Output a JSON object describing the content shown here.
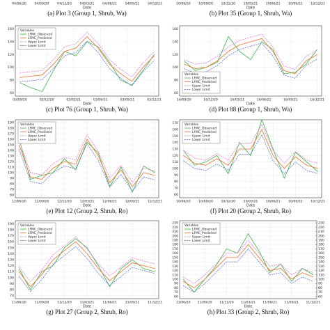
{
  "chart_data": [
    {
      "type": "line",
      "caption": "(a) Plot 3 (Group 1, Shrub, Wa)",
      "x_label": "Date",
      "xlim": [
        -0.5,
        18.5
      ],
      "xticks": [
        {
          "value": 0,
          "label": "04/06/20"
        },
        {
          "value": 3,
          "label": "04/09/20"
        },
        {
          "value": 6,
          "label": "04/12/20"
        },
        {
          "value": 9,
          "label": "04/03/21"
        },
        {
          "value": 12,
          "label": "04/06/21"
        },
        {
          "value": 15,
          "label": "04/09/21"
        },
        {
          "value": 18,
          "label": "04/12/21"
        }
      ]
    },
    {
      "type": "line",
      "caption": "(b) Plot 35 (Group 1, Shrub, Wa)",
      "x_label": "Date",
      "xlim": [
        -0.5,
        18.5
      ],
      "xticks": [
        {
          "value": 0,
          "label": "10/06/20"
        },
        {
          "value": 3,
          "label": "10/09/20"
        },
        {
          "value": 6,
          "label": "10/12/20"
        },
        {
          "value": 9,
          "label": "10/03/21"
        },
        {
          "value": 12,
          "label": "10/06/21"
        },
        {
          "value": 15,
          "label": "10/09/21"
        },
        {
          "value": 18,
          "label": "10/12/21"
        }
      ]
    },
    {
      "type": "line",
      "caption": "(c) Plot 76 (Group 1, Shrub, Wa)",
      "x_label": "Date",
      "xlim": [
        -0.5,
        15.5
      ],
      "ylim": [
        55,
        165
      ],
      "yticks": [
        60,
        80,
        100,
        120,
        140,
        160
      ],
      "grid": true,
      "legend_title": "Variables",
      "legend": "upper left",
      "xticks": [
        {
          "value": 0,
          "label": "03/09/20"
        },
        {
          "value": 3,
          "label": "03/12/20"
        },
        {
          "value": 6,
          "label": "03/03/21"
        },
        {
          "value": 9,
          "label": "03/06/21"
        },
        {
          "value": 12,
          "label": "03/09/21"
        },
        {
          "value": 15,
          "label": "03/12/21"
        }
      ],
      "x": [
        0,
        1.25,
        2.5,
        3.75,
        5,
        6.25,
        7.5,
        8.75,
        10,
        11.25,
        12.5,
        13.75,
        15
      ],
      "series": [
        {
          "name": "LFMC_Observed",
          "color": "#3cb043",
          "dash": false,
          "values": [
            76,
            68,
            62,
            95,
            125,
            118,
            140,
            132,
            108,
            80,
            72,
            95,
            120
          ]
        },
        {
          "name": "LFMC_Predicted",
          "color": "#e8712a",
          "dash": false,
          "values": [
            84,
            86,
            88,
            105,
            125,
            130,
            148,
            130,
            105,
            90,
            78,
            100,
            118
          ]
        },
        {
          "name": "Upper Limit",
          "color": "#e066d0",
          "dash": true,
          "values": [
            91,
            93,
            95,
            112,
            132,
            137,
            155,
            137,
            112,
            97,
            85,
            107,
            125
          ]
        },
        {
          "name": "Lower Limit",
          "color": "#4a5fd0",
          "dash": true,
          "values": [
            77,
            79,
            81,
            98,
            118,
            123,
            141,
            123,
            98,
            83,
            71,
            93,
            111
          ]
        }
      ]
    },
    {
      "type": "line",
      "caption": "(d) Plot 88 (Group 1, Shrub, Wa)",
      "x_label": "Date",
      "xlim": [
        -0.5,
        15.5
      ],
      "ylim": [
        55,
        165
      ],
      "yticks": [
        60,
        80,
        100,
        120,
        140,
        160
      ],
      "grid": true,
      "legend_title": "Variables",
      "legend": "lower left",
      "xticks": [
        {
          "value": 0,
          "label": "16/09/20"
        },
        {
          "value": 3,
          "label": "16/12/20"
        },
        {
          "value": 6,
          "label": "16/03/21"
        },
        {
          "value": 9,
          "label": "16/06/21"
        },
        {
          "value": 12,
          "label": "16/09/21"
        },
        {
          "value": 15,
          "label": "16/12/21"
        }
      ],
      "x": [
        0,
        1.25,
        2.5,
        3.75,
        5,
        6.25,
        7.5,
        8.75,
        10,
        11.25,
        12.5,
        13.75,
        15
      ],
      "series": [
        {
          "name": "LFMC_Observed",
          "color": "#3cb043",
          "dash": false,
          "values": [
            110,
            95,
            100,
            108,
            148,
            125,
            112,
            140,
            128,
            90,
            92,
            105,
            128
          ]
        },
        {
          "name": "LFMC_Predicted",
          "color": "#e8712a",
          "dash": false,
          "values": [
            105,
            98,
            100,
            110,
            125,
            135,
            140,
            145,
            125,
            95,
            90,
            110,
            120
          ]
        },
        {
          "name": "Upper Limit",
          "color": "#e066d0",
          "dash": true,
          "values": [
            112,
            105,
            107,
            117,
            132,
            142,
            147,
            152,
            132,
            102,
            97,
            117,
            127
          ]
        },
        {
          "name": "Lower Limit",
          "color": "#4a5fd0",
          "dash": true,
          "values": [
            98,
            91,
            93,
            103,
            118,
            128,
            133,
            138,
            118,
            88,
            83,
            103,
            113
          ]
        }
      ]
    },
    {
      "type": "line",
      "caption": "(e) Plot 12 (Group 2, Shrub, Ro)",
      "x_label": "Date",
      "xlim": [
        -0.5,
        18.5
      ],
      "ylim": [
        55,
        195
      ],
      "yticks": [
        60,
        70,
        80,
        90,
        100,
        110,
        120,
        130,
        140,
        150,
        160,
        170,
        180,
        190
      ],
      "grid": true,
      "legend_title": "Variables",
      "legend": "upper left",
      "xticks": [
        {
          "value": 0,
          "label": "12/06/20"
        },
        {
          "value": 3,
          "label": "12/09/20"
        },
        {
          "value": 6,
          "label": "12/12/20"
        },
        {
          "value": 9,
          "label": "12/03/21"
        },
        {
          "value": 12,
          "label": "12/06/21"
        },
        {
          "value": 15,
          "label": "12/09/21"
        },
        {
          "value": 18,
          "label": "12/12/21"
        }
      ],
      "x": [
        0,
        1.5,
        3,
        4.5,
        6,
        7.5,
        9,
        10.5,
        12,
        13.5,
        15,
        16.5,
        18
      ],
      "series": [
        {
          "name": "LFMC_Observed",
          "color": "#3cb043",
          "dash": false,
          "values": [
            160,
            88,
            95,
            100,
            125,
            105,
            155,
            135,
            75,
            110,
            65,
            112,
            100
          ]
        },
        {
          "name": "LFMC_Predicted",
          "color": "#e8712a",
          "dash": false,
          "values": [
            150,
            92,
            88,
            108,
            120,
            115,
            160,
            130,
            82,
            105,
            75,
            100,
            95
          ]
        },
        {
          "name": "Upper Limit",
          "color": "#e066d0",
          "dash": true,
          "values": [
            158,
            100,
            96,
            116,
            128,
            123,
            168,
            138,
            90,
            113,
            83,
            108,
            103
          ]
        },
        {
          "name": "Lower Limit",
          "color": "#4a5fd0",
          "dash": true,
          "values": [
            142,
            84,
            80,
            100,
            112,
            107,
            152,
            122,
            74,
            97,
            67,
            92,
            87
          ]
        }
      ]
    },
    {
      "type": "line",
      "caption": "(f) Plot 20 (Group 2, Shrub, Ro)",
      "x_label": "Date",
      "xlim": [
        -0.5,
        18.5
      ],
      "ylim": [
        55,
        175
      ],
      "yticks": [
        60,
        70,
        80,
        90,
        100,
        110,
        120,
        130,
        140,
        150,
        160,
        170
      ],
      "grid": true,
      "legend_title": "Variables",
      "legend": "upper left",
      "xticks": [
        {
          "value": 0,
          "label": "10/06/20"
        },
        {
          "value": 3,
          "label": "10/09/20"
        },
        {
          "value": 6,
          "label": "10/12/20"
        },
        {
          "value": 9,
          "label": "10/03/21"
        },
        {
          "value": 12,
          "label": "10/06/21"
        },
        {
          "value": 15,
          "label": "10/09/21"
        },
        {
          "value": 18,
          "label": "10/12/21"
        }
      ],
      "x": [
        0,
        1.5,
        3,
        4.5,
        6,
        7.5,
        9,
        10.5,
        12,
        13.5,
        15,
        16.5,
        18
      ],
      "series": [
        {
          "name": "LFMC_Observed",
          "color": "#3cb043",
          "dash": false,
          "values": [
            128,
            105,
            110,
            120,
            92,
            140,
            120,
            175,
            130,
            85,
            125,
            110,
            95
          ]
        },
        {
          "name": "LFMC_Predicted",
          "color": "#e8712a",
          "dash": false,
          "values": [
            120,
            108,
            105,
            115,
            105,
            130,
            130,
            160,
            120,
            100,
            118,
            105,
            100
          ]
        },
        {
          "name": "Upper Limit",
          "color": "#e066d0",
          "dash": true,
          "values": [
            128,
            116,
            113,
            123,
            113,
            138,
            138,
            168,
            128,
            108,
            126,
            113,
            108
          ]
        },
        {
          "name": "Lower Limit",
          "color": "#4a5fd0",
          "dash": true,
          "values": [
            112,
            100,
            97,
            107,
            97,
            122,
            122,
            152,
            112,
            92,
            110,
            97,
            92
          ]
        }
      ]
    },
    {
      "type": "line",
      "caption": "(g) Plot 27 (Group 2, Shrub, Ro)",
      "x_label": "Date",
      "xlim": [
        -0.5,
        18.5
      ],
      "ylim": [
        65,
        195
      ],
      "yticks": [
        70,
        80,
        90,
        100,
        110,
        120,
        130,
        140,
        150,
        160,
        170,
        180,
        190
      ],
      "grid": true,
      "legend_title": "Variables",
      "legend": "upper left",
      "xticks": [
        {
          "value": 0,
          "label": "11/06/20"
        },
        {
          "value": 3,
          "label": "11/09/20"
        },
        {
          "value": 6,
          "label": "11/12/20"
        },
        {
          "value": 9,
          "label": "11/03/21"
        },
        {
          "value": 12,
          "label": "11/06/21"
        },
        {
          "value": 15,
          "label": "11/09/21"
        },
        {
          "value": 18,
          "label": "11/12/21"
        }
      ],
      "x": [
        0,
        1.5,
        3,
        4.5,
        6,
        7.5,
        9,
        10.5,
        12,
        13.5,
        15,
        16.5,
        18
      ],
      "series": [
        {
          "name": "LFMC_Observed",
          "color": "#3cb043",
          "dash": false,
          "values": [
            115,
            80,
            110,
            120,
            150,
            165,
            150,
            120,
            85,
            115,
            130,
            115,
            110
          ]
        },
        {
          "name": "LFMC_Predicted",
          "color": "#e8712a",
          "dash": false,
          "values": [
            110,
            85,
            105,
            130,
            145,
            160,
            140,
            115,
            95,
            110,
            125,
            120,
            115
          ]
        },
        {
          "name": "Upper Limit",
          "color": "#e066d0",
          "dash": true,
          "values": [
            118,
            93,
            113,
            138,
            153,
            168,
            148,
            123,
            103,
            118,
            133,
            128,
            123
          ]
        },
        {
          "name": "Lower Limit",
          "color": "#4a5fd0",
          "dash": true,
          "values": [
            102,
            77,
            97,
            122,
            137,
            152,
            132,
            107,
            87,
            102,
            117,
            112,
            107
          ]
        }
      ]
    },
    {
      "type": "line",
      "caption": "(h) Plot 33 (Group 2, Shrub, Ro)",
      "x_label": "Date",
      "xlim": [
        -0.5,
        18.5
      ],
      "ylim": [
        55,
        235
      ],
      "yticks": [
        60,
        70,
        80,
        90,
        100,
        110,
        120,
        130,
        140,
        150,
        160,
        170,
        180,
        190,
        200,
        210,
        220,
        230
      ],
      "y2lim": [
        55,
        235
      ],
      "y2ticks": [
        60,
        70,
        80,
        90,
        100,
        110,
        120,
        130,
        140,
        150,
        160,
        170,
        180,
        190,
        200,
        210,
        220,
        230
      ],
      "grid": true,
      "legend_title": "Variables",
      "legend": "upper left",
      "xticks": [
        {
          "value": 0,
          "label": "11/06/20"
        },
        {
          "value": 3,
          "label": "11/09/20"
        },
        {
          "value": 6,
          "label": "11/12/20"
        },
        {
          "value": 9,
          "label": "11/03/21"
        },
        {
          "value": 12,
          "label": "11/06/21"
        },
        {
          "value": 15,
          "label": "11/09/21"
        },
        {
          "value": 18,
          "label": "11/12/21"
        }
      ],
      "x": [
        0,
        1.5,
        3,
        4.5,
        6,
        7.5,
        9,
        10.5,
        12,
        13.5,
        15,
        16.5,
        18
      ],
      "series": [
        {
          "name": "LFMC_Observed",
          "color": "#3cb043",
          "dash": false,
          "values": [
            100,
            70,
            100,
            130,
            170,
            160,
            205,
            165,
            115,
            135,
            95,
            125,
            110
          ]
        },
        {
          "name": "LFMC_Predicted",
          "color": "#e8712a",
          "dash": false,
          "values": [
            95,
            80,
            100,
            125,
            150,
            150,
            180,
            150,
            120,
            125,
            100,
            115,
            105
          ]
        },
        {
          "name": "Upper Limit",
          "color": "#e066d0",
          "dash": true,
          "values": [
            105,
            90,
            110,
            135,
            160,
            160,
            190,
            160,
            130,
            135,
            110,
            125,
            115
          ]
        },
        {
          "name": "Lower Limit",
          "color": "#4a5fd0",
          "dash": true,
          "values": [
            85,
            70,
            90,
            115,
            140,
            140,
            170,
            140,
            110,
            115,
            90,
            105,
            95
          ]
        }
      ]
    }
  ]
}
